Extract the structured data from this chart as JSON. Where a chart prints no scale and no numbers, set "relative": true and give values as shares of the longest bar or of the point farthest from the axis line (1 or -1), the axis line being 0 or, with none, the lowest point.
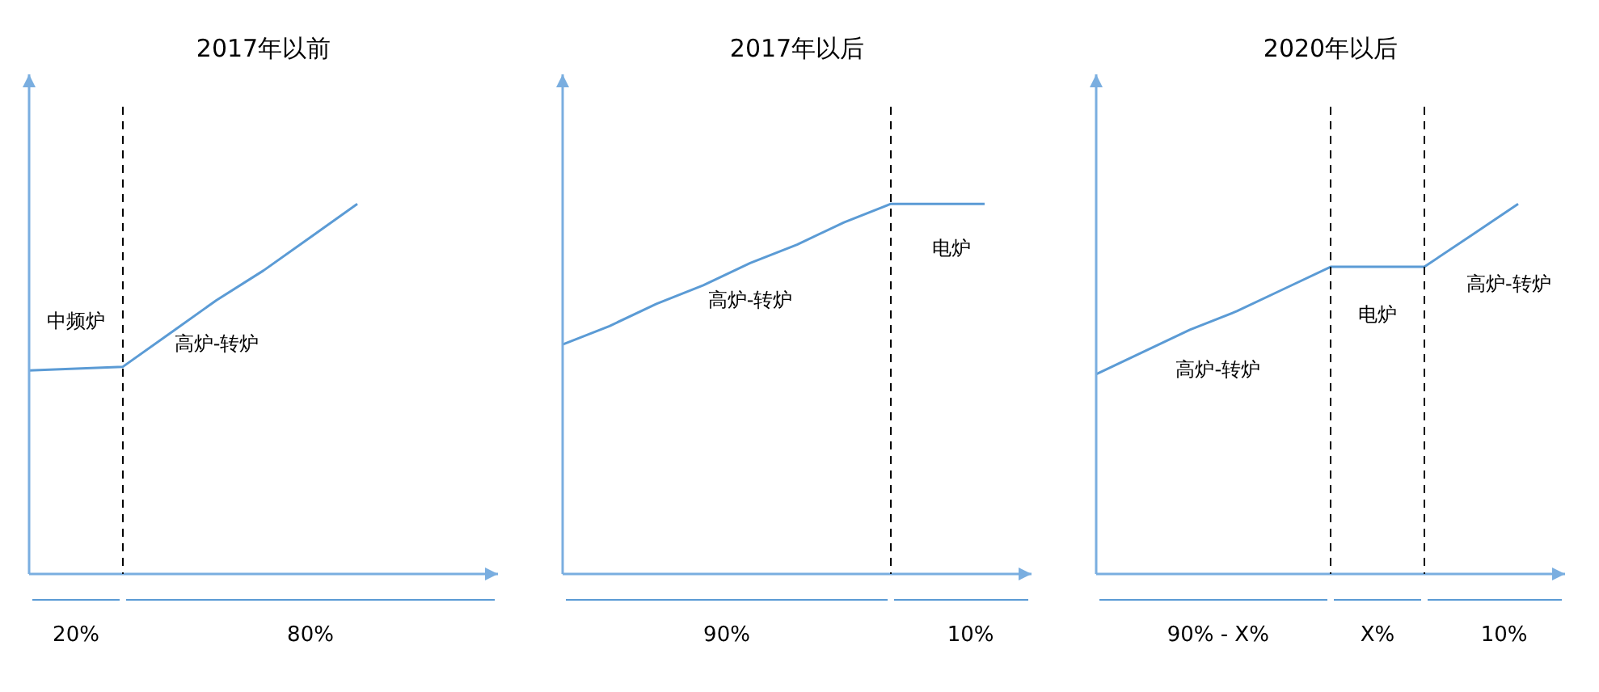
{
  "chart_data": [
    {
      "type": "line",
      "title": "2017年以前",
      "relative": true,
      "categories": [
        null,
        null,
        null,
        null,
        null,
        null,
        null,
        null,
        null,
        null,
        null
      ],
      "legend": false,
      "marker": "none",
      "line_style": "solid",
      "series": [
        {
          "color": "#5b9bd5",
          "values": [
            0.55,
            0.555,
            0.56,
            0.65,
            0.74,
            0.82,
            0.91,
            1,
            null,
            null,
            null
          ]
        }
      ],
      "annotations": [
        "中频炉",
        "高炉-转炉",
        "20%",
        "80%"
      ]
    },
    {
      "type": "line",
      "title": "2017年以后",
      "relative": true,
      "categories": [
        null,
        null,
        null,
        null,
        null,
        null,
        null,
        null,
        null,
        null,
        null
      ],
      "legend": false,
      "marker": "none",
      "line_style": "solid",
      "series": [
        {
          "color": "#5b9bd5",
          "values": [
            0.62,
            0.67,
            0.73,
            0.78,
            0.84,
            0.89,
            0.95,
            1,
            1,
            1,
            null
          ]
        }
      ],
      "annotations": [
        "高炉-转炉",
        "电炉",
        "90%",
        "10%"
      ]
    },
    {
      "type": "line",
      "title": "2020年以后",
      "relative": true,
      "categories": [
        null,
        null,
        null,
        null,
        null,
        null,
        null,
        null,
        null,
        null,
        null
      ],
      "legend": false,
      "marker": "none",
      "line_style": "solid",
      "series": [
        {
          "color": "#5b9bd5",
          "values": [
            0.54,
            0.6,
            0.66,
            0.71,
            0.77,
            0.83,
            0.83,
            0.83,
            0.915,
            1,
            null
          ]
        }
      ],
      "annotations": [
        "高炉-转炉",
        "电炉",
        "高炉-转炉",
        "90% - X%",
        "X%",
        "10%"
      ]
    }
  ]
}
